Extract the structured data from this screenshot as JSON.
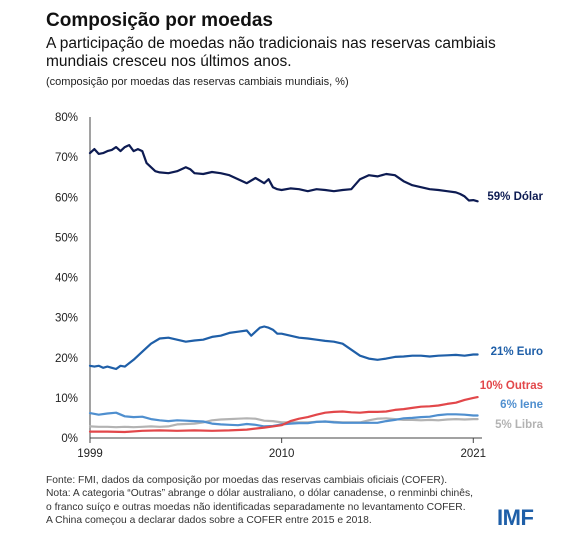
{
  "header": {
    "title": "Composição por moedas",
    "subtitle_line1": "A participação de moedas não tradicionais nas reservas cambiais",
    "subtitle_line2": "mundiais cresceu nos últimos anos.",
    "unit_note": "(composição por moedas das reservas cambiais mundiais, %)"
  },
  "footer": {
    "source": "Fonte: FMI, dados da composição por moedas das reservas cambiais oficiais (COFER).",
    "note1": "Nota: A categoria “Outras” abrange o dólar australiano, o dólar canadense, o renminbi chinês,",
    "note2": "o franco suíço e outras moedas não identificadas separadamente no levantamento COFER.",
    "note3": "A China começou a declarar dados sobre a COFER entre 2015 e 2018.",
    "logo": "IMF"
  },
  "chart_data": {
    "type": "line",
    "x_ticks": [
      "1999",
      "2010",
      "2021"
    ],
    "y_ticks": [
      "0%",
      "10%",
      "20%",
      "30%",
      "40%",
      "50%",
      "60%",
      "70%",
      "80%"
    ],
    "xlim": [
      1999.0,
      2021.5
    ],
    "ylim": [
      0,
      80
    ],
    "grid": false,
    "legend": "end-of-line labels",
    "series": [
      {
        "label": "59% Dólar",
        "color": "#0d1b52",
        "x": [
          1999.0,
          1999.25,
          1999.5,
          1999.75,
          2000.0,
          2000.25,
          2000.5,
          2000.75,
          2001.0,
          2001.25,
          2001.5,
          2001.75,
          2002.0,
          2002.25,
          2002.5,
          2002.75,
          2003.0,
          2003.5,
          2004.0,
          2004.5,
          2004.75,
          2005.0,
          2005.5,
          2006.0,
          2006.5,
          2007.0,
          2007.5,
          2008.0,
          2008.5,
          2009.0,
          2009.25,
          2009.5,
          2009.75,
          2010.0,
          2010.5,
          2011.0,
          2011.5,
          2012.0,
          2012.5,
          2013.0,
          2013.5,
          2014.0,
          2014.5,
          2015.0,
          2015.5,
          2016.0,
          2016.5,
          2017.0,
          2017.5,
          2018.0,
          2018.5,
          2019.0,
          2019.5,
          2020.0,
          2020.25,
          2020.5,
          2020.75,
          2021.0,
          2021.25
        ],
        "values": [
          71,
          72,
          70.8,
          71,
          71.5,
          71.8,
          72.5,
          71.5,
          72.5,
          73,
          71.5,
          72,
          71.5,
          68.5,
          67.5,
          66.5,
          66.2,
          66,
          66.5,
          67.5,
          67,
          66,
          65.8,
          66.3,
          66,
          65.5,
          64.5,
          63.5,
          64.8,
          63.5,
          64.5,
          62.5,
          62,
          61.8,
          62.2,
          62,
          61.5,
          62,
          61.8,
          61.5,
          61.8,
          62,
          64.5,
          65.5,
          65.2,
          65.8,
          65.5,
          64,
          63,
          62.5,
          62,
          61.8,
          61.5,
          61.2,
          60.8,
          60.2,
          59.2,
          59.3,
          59
        ]
      },
      {
        "label": "21% Euro",
        "color": "#1f5fa8",
        "x": [
          1999.0,
          1999.25,
          1999.5,
          1999.75,
          2000.0,
          2000.25,
          2000.5,
          2000.75,
          2001.0,
          2001.5,
          2002.0,
          2002.5,
          2003.0,
          2003.5,
          2004.0,
          2004.5,
          2005.0,
          2005.5,
          2006.0,
          2006.5,
          2007.0,
          2007.5,
          2008.0,
          2008.25,
          2008.5,
          2008.75,
          2009.0,
          2009.25,
          2009.5,
          2009.75,
          2010.0,
          2010.5,
          2011.0,
          2011.5,
          2012.0,
          2012.5,
          2013.0,
          2013.5,
          2014.0,
          2014.5,
          2015.0,
          2015.5,
          2016.0,
          2016.5,
          2017.0,
          2017.5,
          2018.0,
          2018.5,
          2019.0,
          2019.5,
          2020.0,
          2020.5,
          2021.0,
          2021.25
        ],
        "values": [
          18,
          17.8,
          18,
          17.5,
          17.8,
          17.5,
          17.2,
          18,
          17.8,
          19.5,
          21.5,
          23.5,
          24.8,
          25,
          24.5,
          24,
          24.3,
          24.5,
          25.2,
          25.5,
          26.2,
          26.5,
          26.8,
          25.5,
          26.5,
          27.5,
          27.8,
          27.5,
          27,
          26,
          26,
          25.5,
          25,
          24.8,
          24.5,
          24.2,
          24,
          23.5,
          22,
          20.5,
          19.8,
          19.5,
          19.8,
          20.2,
          20.3,
          20.5,
          20.5,
          20.3,
          20.5,
          20.6,
          20.7,
          20.5,
          20.8,
          20.8
        ]
      },
      {
        "label": "10% Outras",
        "color": "#e2474a",
        "x": [
          1999.0,
          2000.0,
          2001.0,
          2002.0,
          2003.0,
          2004.0,
          2005.0,
          2006.0,
          2007.0,
          2008.0,
          2009.0,
          2010.0,
          2010.5,
          2011.0,
          2011.5,
          2012.0,
          2012.5,
          2013.0,
          2013.5,
          2014.0,
          2014.5,
          2015.0,
          2015.5,
          2016.0,
          2016.5,
          2017.0,
          2017.5,
          2018.0,
          2018.5,
          2019.0,
          2019.5,
          2020.0,
          2020.5,
          2021.0,
          2021.25
        ],
        "values": [
          1.6,
          1.6,
          1.5,
          1.8,
          1.9,
          1.8,
          1.9,
          1.8,
          1.9,
          2.1,
          2.6,
          3.2,
          4.2,
          4.8,
          5.2,
          5.8,
          6.3,
          6.5,
          6.6,
          6.4,
          6.3,
          6.5,
          6.5,
          6.6,
          7,
          7.2,
          7.5,
          7.8,
          7.9,
          8.1,
          8.5,
          8.8,
          9.5,
          10,
          10.2
        ]
      },
      {
        "label": "6% Iene",
        "color": "#4f8fcf",
        "x": [
          1999.0,
          1999.5,
          2000.0,
          2000.5,
          2001.0,
          2001.5,
          2002.0,
          2002.5,
          2003.0,
          2003.5,
          2004.0,
          2004.5,
          2005.0,
          2005.5,
          2006.0,
          2006.5,
          2007.0,
          2007.5,
          2008.0,
          2008.5,
          2009.0,
          2009.5,
          2010.0,
          2010.5,
          2011.0,
          2011.5,
          2012.0,
          2012.5,
          2013.0,
          2013.5,
          2014.0,
          2014.5,
          2015.0,
          2015.5,
          2016.0,
          2016.5,
          2017.0,
          2017.5,
          2018.0,
          2018.5,
          2019.0,
          2019.5,
          2020.0,
          2020.5,
          2021.0,
          2021.25
        ],
        "values": [
          6.2,
          5.8,
          6.1,
          6.3,
          5.4,
          5.2,
          5.3,
          4.7,
          4.4,
          4.2,
          4.4,
          4.3,
          4.2,
          4.1,
          3.6,
          3.4,
          3.3,
          3.2,
          3.5,
          3.3,
          2.9,
          3.0,
          3.4,
          3.6,
          3.7,
          3.7,
          4,
          4.1,
          3.9,
          3.8,
          3.8,
          3.8,
          3.8,
          3.8,
          4.2,
          4.5,
          4.9,
          5,
          5.2,
          5.3,
          5.7,
          5.9,
          5.9,
          5.8,
          5.6,
          5.6
        ]
      },
      {
        "label": "5% Libra",
        "color": "#b3b3b3",
        "x": [
          1999.0,
          1999.5,
          2000.0,
          2000.5,
          2001.0,
          2001.5,
          2002.0,
          2002.5,
          2003.0,
          2003.5,
          2004.0,
          2004.5,
          2005.0,
          2005.5,
          2006.0,
          2006.5,
          2007.0,
          2007.5,
          2008.0,
          2008.5,
          2009.0,
          2009.5,
          2010.0,
          2010.5,
          2011.0,
          2011.5,
          2012.0,
          2012.5,
          2013.0,
          2013.5,
          2014.0,
          2014.5,
          2015.0,
          2015.5,
          2016.0,
          2016.5,
          2017.0,
          2017.5,
          2018.0,
          2018.5,
          2019.0,
          2019.5,
          2020.0,
          2020.5,
          2021.0,
          2021.25
        ],
        "values": [
          2.9,
          2.8,
          2.8,
          2.7,
          2.8,
          2.7,
          2.8,
          2.9,
          2.8,
          2.9,
          3.4,
          3.5,
          3.6,
          3.9,
          4.4,
          4.6,
          4.7,
          4.8,
          4.9,
          4.8,
          4.3,
          4.2,
          3.9,
          3.9,
          3.9,
          3.9,
          4,
          4.1,
          4,
          3.9,
          3.9,
          3.9,
          4.4,
          4.8,
          4.9,
          4.7,
          4.5,
          4.5,
          4.4,
          4.5,
          4.4,
          4.6,
          4.7,
          4.6,
          4.7,
          4.7
        ]
      }
    ]
  }
}
